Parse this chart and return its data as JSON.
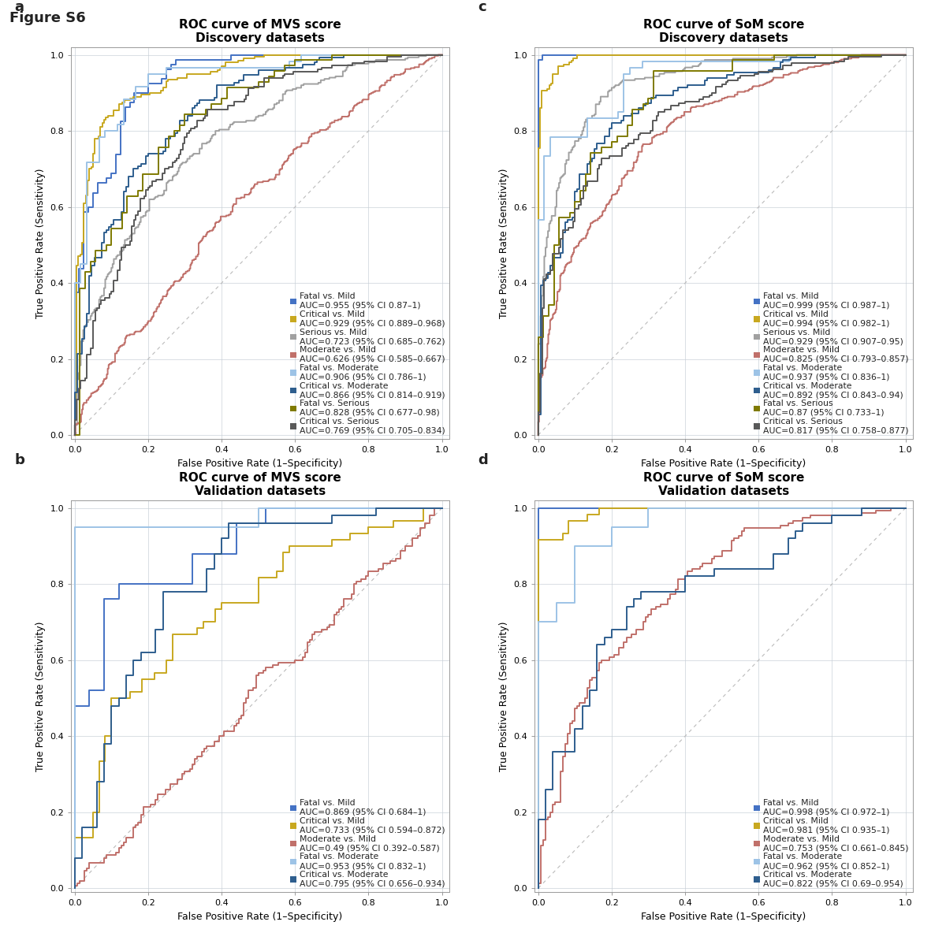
{
  "figure_label": "Figure S6",
  "panels": {
    "a": {
      "label": "a",
      "title": "ROC curve of MVS score\nDiscovery datasets",
      "curves": [
        {
          "name": "Fatal vs. Mild",
          "auc_text": "AUC=0.955 (95% CI 0.87–1)",
          "color": "#4472C4",
          "lw": 1.4
        },
        {
          "name": "Critical vs. Mild",
          "auc_text": "AUC=0.929 (95% CI 0.889–0.968)",
          "color": "#C8A820",
          "lw": 1.4
        },
        {
          "name": "Serious vs. Mild",
          "auc_text": "AUC=0.723 (95% CI 0.685–0.762)",
          "color": "#A0A0A0",
          "lw": 1.4
        },
        {
          "name": "Moderate vs. Mild",
          "auc_text": "AUC=0.626 (95% CI 0.585–0.667)",
          "color": "#C0706A",
          "lw": 1.4
        },
        {
          "name": "Fatal vs. Moderate",
          "auc_text": "AUC=0.906 (95% CI 0.786–1)",
          "color": "#9DC3E6",
          "lw": 1.4
        },
        {
          "name": "Critical vs. Moderate",
          "auc_text": "AUC=0.866 (95% CI 0.814–0.919)",
          "color": "#2E5E8E",
          "lw": 1.4
        },
        {
          "name": "Fatal vs. Serious",
          "auc_text": "AUC=0.828 (95% CI 0.677–0.98)",
          "color": "#7F7A00",
          "lw": 1.4
        },
        {
          "name": "Critical vs. Serious",
          "auc_text": "AUC=0.769 (95% CI 0.705–0.834)",
          "color": "#595959",
          "lw": 1.4
        }
      ]
    },
    "b": {
      "label": "b",
      "title": "ROC curve of MVS score\nValidation datasets",
      "curves": [
        {
          "name": "Fatal vs. Mild",
          "auc_text": "AUC=0.869 (95% CI 0.684–1)",
          "color": "#4472C4",
          "lw": 1.4
        },
        {
          "name": "Critical vs. Mild",
          "auc_text": "AUC=0.733 (95% CI 0.594–0.872)",
          "color": "#C8A820",
          "lw": 1.4
        },
        {
          "name": "Moderate vs. Mild",
          "auc_text": "AUC=0.49 (95% CI 0.392–0.587)",
          "color": "#C0706A",
          "lw": 1.4
        },
        {
          "name": "Fatal vs. Moderate",
          "auc_text": "AUC=0.953 (95% CI 0.832–1)",
          "color": "#9DC3E6",
          "lw": 1.4
        },
        {
          "name": "Critical vs. Moderate",
          "auc_text": "AUC=0.795 (95% CI 0.656–0.934)",
          "color": "#2E5E8E",
          "lw": 1.4
        }
      ]
    },
    "c": {
      "label": "c",
      "title": "ROC curve of SoM score\nDiscovery datasets",
      "curves": [
        {
          "name": "Fatal vs. Mild",
          "auc_text": "AUC=0.999 (95% CI 0.987–1)",
          "color": "#4472C4",
          "lw": 1.4
        },
        {
          "name": "Critical vs. Mild",
          "auc_text": "AUC=0.994 (95% CI 0.982–1)",
          "color": "#C8A820",
          "lw": 1.4
        },
        {
          "name": "Serious vs. Mild",
          "auc_text": "AUC=0.929 (95% CI 0.907–0.95)",
          "color": "#A0A0A0",
          "lw": 1.4
        },
        {
          "name": "Moderate vs. Mild",
          "auc_text": "AUC=0.825 (95% CI 0.793–0.857)",
          "color": "#C0706A",
          "lw": 1.4
        },
        {
          "name": "Fatal vs. Moderate",
          "auc_text": "AUC=0.937 (95% CI 0.836–1)",
          "color": "#9DC3E6",
          "lw": 1.4
        },
        {
          "name": "Critical vs. Moderate",
          "auc_text": "AUC=0.892 (95% CI 0.843–0.94)",
          "color": "#2E5E8E",
          "lw": 1.4
        },
        {
          "name": "Fatal vs. Serious",
          "auc_text": "AUC=0.87 (95% CI 0.733–1)",
          "color": "#7F7A00",
          "lw": 1.4
        },
        {
          "name": "Critical vs. Serious",
          "auc_text": "AUC=0.817 (95% CI 0.758–0.877)",
          "color": "#595959",
          "lw": 1.4
        }
      ]
    },
    "d": {
      "label": "d",
      "title": "ROC curve of SoM score\nValidation datasets",
      "curves": [
        {
          "name": "Fatal vs. Mild",
          "auc_text": "AUC=0.998 (95% CI 0.972–1)",
          "color": "#4472C4",
          "lw": 1.4
        },
        {
          "name": "Critical vs. Mild",
          "auc_text": "AUC=0.981 (95% CI 0.935–1)",
          "color": "#C8A820",
          "lw": 1.4
        },
        {
          "name": "Moderate vs. Mild",
          "auc_text": "AUC=0.753 (95% CI 0.661–0.845)",
          "color": "#C0706A",
          "lw": 1.4
        },
        {
          "name": "Fatal vs. Moderate",
          "auc_text": "AUC=0.962 (95% CI 0.852–1)",
          "color": "#9DC3E6",
          "lw": 1.4
        },
        {
          "name": "Critical vs. Moderate",
          "auc_text": "AUC=0.822 (95% CI 0.69–0.954)",
          "color": "#2E5E8E",
          "lw": 1.4
        }
      ]
    }
  },
  "xlabel": "False Positive Rate (1–Specificity)",
  "ylabel": "True Positive Rate (Sensitivity)",
  "background_color": "#FFFFFF",
  "grid_color": "#C8D0D8",
  "diag_color": "#BBBBBB",
  "text_color": "#222222",
  "axis_label_fontsize": 9,
  "tick_fontsize": 8,
  "title_fontsize": 11,
  "legend_fontsize": 7.8,
  "panel_label_fontsize": 13
}
